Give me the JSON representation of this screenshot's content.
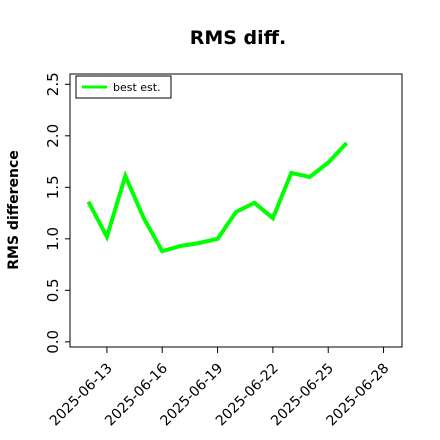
{
  "chart_data": {
    "type": "line",
    "title": "RMS diff.",
    "xlabel": "",
    "ylabel": "RMS difference",
    "x_ticks": [
      "2025-06-13",
      "2025-06-16",
      "2025-06-19",
      "2025-06-22",
      "2025-06-25",
      "2025-06-28"
    ],
    "y_ticks": [
      "0.0",
      "0.5",
      "1.0",
      "1.5",
      "2.0",
      "2.5"
    ],
    "xlim": [
      "2025-06-11",
      "2025-06-29"
    ],
    "ylim": [
      -0.05,
      2.6
    ],
    "grid": false,
    "legend_position": "top-left",
    "series": [
      {
        "name": "best est.",
        "color": "#00ff00",
        "x": [
          "2025-06-12",
          "2025-06-13",
          "2025-06-14",
          "2025-06-15",
          "2025-06-16",
          "2025-06-17",
          "2025-06-18",
          "2025-06-19",
          "2025-06-20",
          "2025-06-21",
          "2025-06-22",
          "2025-06-23",
          "2025-06-24",
          "2025-06-25",
          "2025-06-26"
        ],
        "values": [
          1.36,
          1.02,
          1.61,
          1.2,
          0.88,
          0.93,
          0.96,
          1.0,
          1.26,
          1.35,
          1.2,
          1.64,
          1.6,
          1.74,
          1.93
        ]
      }
    ]
  }
}
